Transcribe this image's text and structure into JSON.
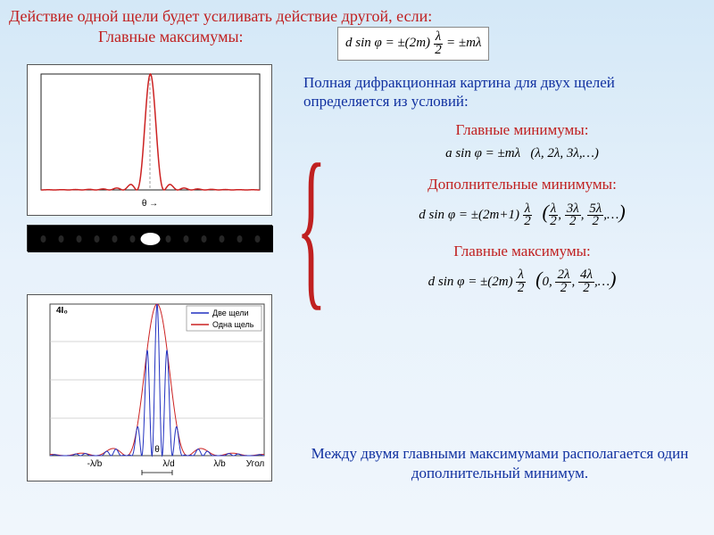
{
  "header": "Действие одной щели будет усиливать действие другой, если:",
  "subheader": "Главные максимумы:",
  "formula_main_max": "d sin φ = ±(2m) λ/2 = ±mλ",
  "text_full_pattern": "Полная дифракционная картина для двух щелей определяется из условий:",
  "sections": {
    "main_min": {
      "label": "Главные минимумы:",
      "formula": "a sin φ = ±mλ   (λ, 2λ, 3λ,…)"
    },
    "add_min": {
      "label": "Дополнительные минимумы:",
      "formula": "d sin φ = ±(2m+1) λ/2   (λ/2, 3λ/2, 5λ/2,…)"
    },
    "main_max": {
      "label": "Главные максимумы:",
      "formula": "d sin φ = ±(2m) λ/2   (0, 2λ/2, 4λ/2,…)"
    }
  },
  "footer": "Между двумя главными максимумами располагается один дополнительный минимум.",
  "chart1": {
    "type": "line",
    "title": "single-slit-diffraction",
    "x_axis_label": "θ →",
    "line_color": "#cc2222",
    "line_width": 1.5,
    "background": "#ffffff",
    "xlim": [
      -8,
      8
    ],
    "ylim": [
      0,
      1.05
    ],
    "minima_positions": [
      -7,
      -6,
      -5,
      -4,
      -3,
      -2,
      -1,
      1,
      2,
      3,
      4,
      5,
      6,
      7
    ]
  },
  "diffraction_strip": {
    "background": "#000000",
    "spot_color": "#ffffff",
    "num_spots": 13
  },
  "chart2": {
    "type": "line",
    "background": "#ffffff",
    "grid_color": "#c8c8c8",
    "legend": {
      "two_slit": {
        "label": "Две щели",
        "color": "#2030c0"
      },
      "one_slit": {
        "label": "Одна щель",
        "color": "#cc2222"
      }
    },
    "y_max_label": "4I₀",
    "x_axis_label": "Угол",
    "x_ticks": [
      "-λ/b",
      "λ/d",
      "λ/b"
    ],
    "xlim": [
      -3.5,
      3.5
    ],
    "ylim": [
      0,
      1.05
    ],
    "envelope_color": "#cc2222",
    "fast_color": "#2030c0",
    "fast_ratio": 6,
    "line_width": 1
  },
  "colors": {
    "heading": "#c02020",
    "body_text": "#1030a0",
    "formula_text": "#000000",
    "page_bg_top": "#d4e8f7",
    "page_bg_bottom": "#f0f6fc"
  }
}
